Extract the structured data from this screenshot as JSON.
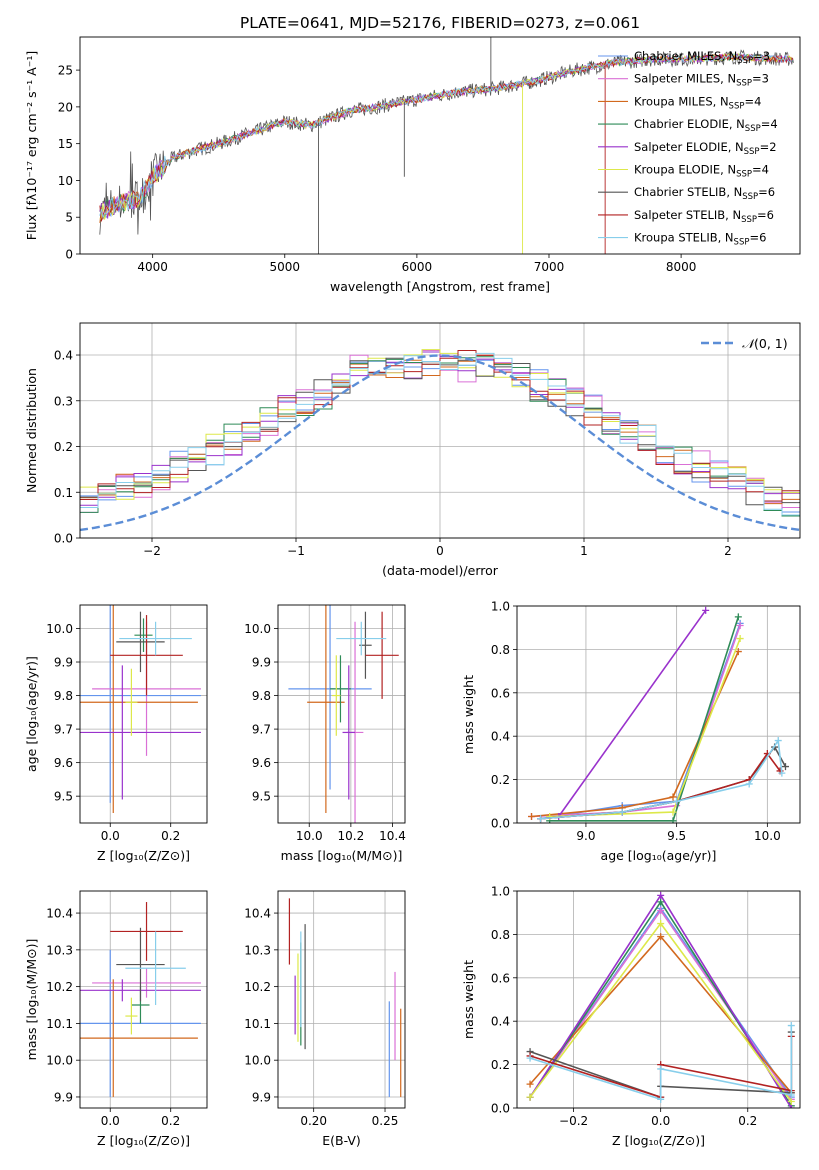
{
  "figure_title": "PLATE=0641, MJD=52176, FIBERID=0273, z=0.061",
  "series": [
    {
      "key": "chab_miles",
      "label": "Chabrier MILES, N",
      "sub": "SSP",
      "eq": "=3",
      "color": "#6495ED"
    },
    {
      "key": "salp_miles",
      "label": "Salpeter MILES, N",
      "sub": "SSP",
      "eq": "=3",
      "color": "#DA70D6"
    },
    {
      "key": "krou_miles",
      "label": "Kroupa MILES, N",
      "sub": "SSP",
      "eq": "=4",
      "color": "#D2691E"
    },
    {
      "key": "chab_elodie",
      "label": "Chabrier ELODIE, N",
      "sub": "SSP",
      "eq": "=4",
      "color": "#2E8B57"
    },
    {
      "key": "salp_elodie",
      "label": "Salpeter ELODIE, N",
      "sub": "SSP",
      "eq": "=2",
      "color": "#9932CC"
    },
    {
      "key": "krou_elodie",
      "label": "Kroupa ELODIE, N",
      "sub": "SSP",
      "eq": "=4",
      "color": "#DDE84A"
    },
    {
      "key": "chab_stelib",
      "label": "Chabrier STELIB, N",
      "sub": "SSP",
      "eq": "=6",
      "color": "#555555"
    },
    {
      "key": "salp_stelib",
      "label": "Salpeter STELIB, N",
      "sub": "SSP",
      "eq": "=6",
      "color": "#B22222"
    },
    {
      "key": "krou_stelib",
      "label": "Kroupa STELIB, N",
      "sub": "SSP",
      "eq": "=6",
      "color": "#87CEEB"
    }
  ],
  "chart_data": [
    {
      "id": "spectrum",
      "type": "line",
      "xlabel": "wavelength [Angstrom, rest frame]",
      "ylabel": "Flux [fλ10⁻¹⁷ erg cm⁻² s⁻¹ A⁻¹]",
      "xlim": [
        3450,
        8900
      ],
      "ylim": [
        0,
        29.5
      ],
      "xticks": [
        4000,
        5000,
        6000,
        7000,
        8000
      ],
      "yticks": [
        0,
        5,
        10,
        15,
        20,
        25
      ],
      "grid": false,
      "legend": "right",
      "continuum": {
        "x": [
          3600,
          3700,
          3800,
          3900,
          4000,
          4150,
          4300,
          4500,
          4700,
          5000,
          5200,
          5500,
          5700,
          6000,
          6300,
          6600,
          6900,
          7200,
          7500,
          7800,
          8100,
          8400,
          8800
        ],
        "y": [
          5.5,
          6.5,
          7.2,
          7.5,
          10.5,
          13,
          14,
          15,
          16.2,
          18,
          17.5,
          19.5,
          20,
          21,
          22,
          22.5,
          23.5,
          25,
          26,
          26.5,
          26.5,
          26.8,
          26.5
        ]
      }
    },
    {
      "id": "residual_hist",
      "type": "bar",
      "xlabel": "(data-model)/error",
      "ylabel": "Normed distribution",
      "xlim": [
        -2.5,
        2.5
      ],
      "ylim": [
        0,
        0.47
      ],
      "xticks": [
        -2,
        -1,
        0,
        1,
        2
      ],
      "yticks": [
        0.0,
        0.1,
        0.2,
        0.3,
        0.4
      ],
      "grid": true,
      "legend": "top-right",
      "reference": {
        "label": "𝒩(0,1)",
        "mu": 0,
        "sigma": 1,
        "color": "#5B8DD6"
      }
    },
    {
      "id": "age_vs_Z",
      "type": "scatter",
      "xlabel": "Z [log₁₀(Z/Z⊙)]",
      "ylabel": "age  [log₁₀(age/yr)]",
      "xlim": [
        -0.1,
        0.32
      ],
      "ylim": [
        9.42,
        10.07
      ],
      "xticks": [
        0.0,
        0.2
      ],
      "yticks": [
        9.5,
        9.6,
        9.7,
        9.8,
        9.9,
        10.0
      ],
      "grid": true,
      "points": [
        {
          "s": 0,
          "x": 0.0,
          "xe": 0.3,
          "y": 9.8,
          "ye": 0.32
        },
        {
          "s": 1,
          "x": 0.12,
          "xe": 0.18,
          "y": 9.82,
          "ye": 0.2
        },
        {
          "s": 2,
          "x": 0.01,
          "xe": 0.28,
          "y": 9.78,
          "ye": 0.33
        },
        {
          "s": 3,
          "x": 0.11,
          "xe": 0.03,
          "y": 9.98,
          "ye": 0.05
        },
        {
          "s": 4,
          "x": 0.04,
          "xe": 0.26,
          "y": 9.69,
          "ye": 0.2
        },
        {
          "s": 5,
          "x": 0.07,
          "xe": 0.02,
          "y": 9.78,
          "ye": 0.1
        },
        {
          "s": 6,
          "x": 0.1,
          "xe": 0.08,
          "y": 9.96,
          "ye": 0.09
        },
        {
          "s": 7,
          "x": 0.12,
          "xe": 0.12,
          "y": 9.92,
          "ye": 0.12
        },
        {
          "s": 8,
          "x": 0.15,
          "xe": 0.12,
          "y": 9.97,
          "ye": 0.05
        }
      ]
    },
    {
      "id": "age_vs_mass",
      "type": "scatter",
      "xlabel": "mass [log₁₀(M/M⊙)]",
      "ylabel": "",
      "xlim": [
        9.85,
        10.46
      ],
      "ylim": [
        9.42,
        10.07
      ],
      "xticks": [
        10.0,
        10.2,
        10.4
      ],
      "yticks": [
        9.5,
        9.6,
        9.7,
        9.8,
        9.9,
        10.0
      ],
      "grid": true,
      "points": [
        {
          "s": 0,
          "x": 10.1,
          "xe": 0.2,
          "y": 9.82,
          "ye": 0.3
        },
        {
          "s": 1,
          "x": 10.22,
          "xe": 0.04,
          "y": 9.69,
          "ye": 0.33
        },
        {
          "s": 2,
          "x": 10.08,
          "xe": 0.09,
          "y": 9.78,
          "ye": 0.33
        },
        {
          "s": 3,
          "x": 10.15,
          "xe": 0.05,
          "y": 9.82,
          "ye": 0.1
        },
        {
          "s": 4,
          "x": 10.19,
          "xe": 0.03,
          "y": 9.69,
          "ye": 0.2
        },
        {
          "s": 5,
          "x": 10.13,
          "xe": 0.02,
          "y": 9.8,
          "ye": 0.12
        },
        {
          "s": 6,
          "x": 10.27,
          "xe": 0.03,
          "y": 9.95,
          "ye": 0.1
        },
        {
          "s": 7,
          "x": 10.35,
          "xe": 0.08,
          "y": 9.92,
          "ye": 0.13
        },
        {
          "s": 8,
          "x": 10.25,
          "xe": 0.12,
          "y": 9.97,
          "ye": 0.05
        }
      ]
    },
    {
      "id": "weight_vs_age",
      "type": "line",
      "xlabel": "age  [log₁₀(age/yr)]",
      "ylabel": "mass weight",
      "xlim": [
        8.62,
        10.18
      ],
      "ylim": [
        0,
        1.0
      ],
      "xticks": [
        9.0,
        9.5,
        10.0
      ],
      "yticks": [
        0.0,
        0.2,
        0.4,
        0.6,
        0.8,
        1.0
      ],
      "grid": true,
      "lines": [
        {
          "s": 0,
          "x": [
            8.75,
            9.2,
            9.5,
            9.85
          ],
          "y": [
            0.02,
            0.08,
            0.1,
            0.92
          ]
        },
        {
          "s": 1,
          "x": [
            8.7,
            9.2,
            9.5,
            9.85
          ],
          "y": [
            0.03,
            0.05,
            0.08,
            0.91
          ]
        },
        {
          "s": 2,
          "x": [
            8.7,
            9.2,
            9.48,
            9.84
          ],
          "y": [
            0.03,
            0.07,
            0.12,
            0.79
          ]
        },
        {
          "s": 3,
          "x": [
            8.8,
            9.48,
            9.84
          ],
          "y": [
            0.01,
            0.01,
            0.95
          ]
        },
        {
          "s": 4,
          "x": [
            8.85,
            9.66
          ],
          "y": [
            0.03,
            0.98
          ]
        },
        {
          "s": 5,
          "x": [
            8.8,
            9.48,
            9.85
          ],
          "y": [
            0.03,
            0.05,
            0.85
          ]
        },
        {
          "s": 6,
          "x": [
            8.75,
            9.2,
            9.5,
            9.9,
            10.04,
            10.1
          ],
          "y": [
            0.02,
            0.05,
            0.1,
            0.2,
            0.35,
            0.26
          ]
        },
        {
          "s": 7,
          "x": [
            8.75,
            9.2,
            9.5,
            9.9,
            10.0,
            10.07
          ],
          "y": [
            0.02,
            0.05,
            0.1,
            0.2,
            0.32,
            0.24
          ]
        },
        {
          "s": 8,
          "x": [
            8.75,
            9.2,
            9.5,
            9.9,
            10.06,
            10.08
          ],
          "y": [
            0.02,
            0.05,
            0.1,
            0.18,
            0.38,
            0.23
          ]
        }
      ]
    },
    {
      "id": "mass_vs_Z",
      "type": "scatter",
      "xlabel": "Z [log₁₀(Z/Z⊙)]",
      "ylabel": "mass [log₁₀(M/M⊙)]",
      "xlim": [
        -0.1,
        0.32
      ],
      "ylim": [
        9.87,
        10.46
      ],
      "xticks": [
        0.0,
        0.2
      ],
      "yticks": [
        9.9,
        10.0,
        10.1,
        10.2,
        10.3,
        10.4
      ],
      "grid": true,
      "points": [
        {
          "s": 0,
          "x": 0.0,
          "xe": 0.3,
          "y": 10.1,
          "ye": 0.2
        },
        {
          "s": 1,
          "x": 0.12,
          "xe": 0.18,
          "y": 10.21,
          "ye": 0.04
        },
        {
          "s": 2,
          "x": 0.01,
          "xe": 0.28,
          "y": 10.06,
          "ye": 0.16
        },
        {
          "s": 3,
          "x": 0.1,
          "xe": 0.03,
          "y": 10.15,
          "ye": 0.05
        },
        {
          "s": 4,
          "x": 0.04,
          "xe": 0.26,
          "y": 10.19,
          "ye": 0.03
        },
        {
          "s": 5,
          "x": 0.07,
          "xe": 0.02,
          "y": 10.12,
          "ye": 0.05
        },
        {
          "s": 6,
          "x": 0.1,
          "xe": 0.08,
          "y": 10.26,
          "ye": 0.1
        },
        {
          "s": 7,
          "x": 0.12,
          "xe": 0.12,
          "y": 10.35,
          "ye": 0.08
        },
        {
          "s": 8,
          "x": 0.15,
          "xe": 0.1,
          "y": 10.25,
          "ye": 0.1
        }
      ]
    },
    {
      "id": "mass_vs_ebv",
      "type": "scatter",
      "xlabel": "E(B-V)",
      "ylabel": "",
      "xlim": [
        0.175,
        0.264
      ],
      "ylim": [
        9.87,
        10.46
      ],
      "xticks": [
        0.2,
        0.25
      ],
      "yticks": [
        9.9,
        10.0,
        10.1,
        10.2,
        10.3,
        10.4
      ],
      "grid": true,
      "points": [
        {
          "s": 0,
          "x": 0.253,
          "xe": 0,
          "y": 10.03,
          "ye": 0.13
        },
        {
          "s": 1,
          "x": 0.257,
          "xe": 0,
          "y": 10.12,
          "ye": 0.12
        },
        {
          "s": 2,
          "x": 0.261,
          "xe": 0,
          "y": 10.02,
          "ye": 0.12
        },
        {
          "s": 3,
          "x": 0.191,
          "xe": 0,
          "y": 10.18,
          "ye": 0.14
        },
        {
          "s": 4,
          "x": 0.187,
          "xe": 0,
          "y": 10.15,
          "ye": 0.08
        },
        {
          "s": 5,
          "x": 0.189,
          "xe": 0,
          "y": 10.17,
          "ye": 0.12
        },
        {
          "s": 6,
          "x": 0.194,
          "xe": 0,
          "y": 10.2,
          "ye": 0.17
        },
        {
          "s": 7,
          "x": 0.183,
          "xe": 0,
          "y": 10.35,
          "ye": 0.09
        },
        {
          "s": 8,
          "x": 0.191,
          "xe": 0,
          "y": 10.22,
          "ye": 0.13
        }
      ]
    },
    {
      "id": "weight_vs_Z",
      "type": "line",
      "xlabel": "Z [log₁₀(Z/Z⊙)]",
      "ylabel": "mass weight",
      "xlim": [
        -0.33,
        0.32
      ],
      "ylim": [
        0,
        1.0
      ],
      "xticks": [
        -0.2,
        0.0,
        0.2
      ],
      "yticks": [
        0.0,
        0.2,
        0.4,
        0.6,
        0.8,
        1.0
      ],
      "grid": true,
      "lines": [
        {
          "s": 0,
          "x": [
            -0.3,
            0.0,
            0.3
          ],
          "y": [
            0.05,
            0.92,
            0.05
          ]
        },
        {
          "s": 1,
          "x": [
            -0.3,
            0.0,
            0.3
          ],
          "y": [
            0.05,
            0.91,
            0.04
          ]
        },
        {
          "s": 2,
          "x": [
            -0.3,
            0.0,
            0.3
          ],
          "y": [
            0.11,
            0.79,
            0.07
          ]
        },
        {
          "s": 3,
          "x": [
            -0.3,
            0.0,
            0.3
          ],
          "y": [
            0.05,
            0.95,
            0.01
          ]
        },
        {
          "s": 4,
          "x": [
            -0.3,
            0.0,
            0.3
          ],
          "y": [
            0.05,
            0.98,
            0.0
          ]
        },
        {
          "s": 5,
          "x": [
            -0.3,
            0.0,
            0.3
          ],
          "y": [
            0.05,
            0.85,
            0.03
          ]
        },
        {
          "s": 6,
          "x": [
            -0.3,
            0.0,
            0.0,
            0.3,
            0.3
          ],
          "y": [
            0.26,
            0.05,
            0.1,
            0.07,
            0.35
          ]
        },
        {
          "s": 7,
          "x": [
            -0.3,
            0.0,
            0.0,
            0.3,
            0.3
          ],
          "y": [
            0.24,
            0.05,
            0.2,
            0.08,
            0.33
          ]
        },
        {
          "s": 8,
          "x": [
            -0.3,
            0.0,
            0.0,
            0.3,
            0.3
          ],
          "y": [
            0.23,
            0.04,
            0.18,
            0.06,
            0.38
          ]
        }
      ]
    }
  ]
}
